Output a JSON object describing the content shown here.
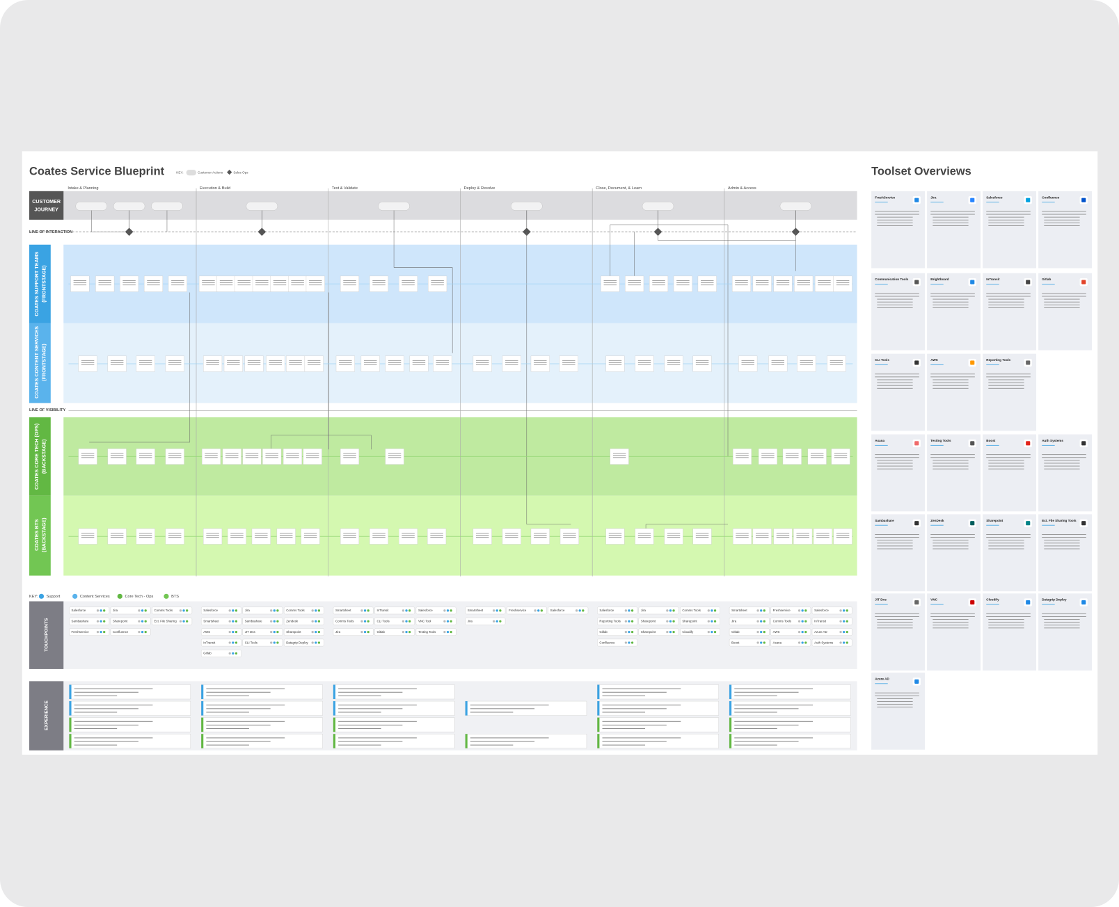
{
  "header": {
    "title": "Coates Service Blueprint",
    "key_label": "KEY:",
    "key_items": [
      "Customer Actions",
      "Sales Ops"
    ]
  },
  "phases": [
    "Intake & Planning",
    "Execution & Build",
    "Test & Validate",
    "Deploy & Resolve",
    "Close, Document, & Learn",
    "Admin & Access"
  ],
  "journey_label": [
    "CUSTOMER",
    "JOURNEY"
  ],
  "lines": {
    "interaction": "LINE OF INTERACTION",
    "visibility": "LINE OF VISIBILITY"
  },
  "lanes": [
    {
      "label": "COATES SUPPORT TEAMS",
      "sub": "(FRONTSTAGE)"
    },
    {
      "label": "COATES CONTENT SERVICES",
      "sub": "(FRONTSTAGE)"
    },
    {
      "label": "COATES CORE TECH (OPS)",
      "sub": "(BACKSTAGE)"
    },
    {
      "label": "COATES BTS",
      "sub": "(BACKSTAGE)"
    }
  ],
  "lane_key": {
    "label": "KEY:",
    "items": [
      "Support",
      "Content Services",
      "Core Tech - Ops",
      "BTS"
    ]
  },
  "touchpoints": {
    "label": "TOUCHPOINTS",
    "groups": [
      [
        "Salesforce",
        "Jira",
        "Comms Tools",
        "Sambashare",
        "Sharepoint",
        "Ext. File Sharing",
        "Freshservice",
        "Confluence"
      ],
      [
        "Salesforce",
        "Jira",
        "Comms Tools",
        "Smartsheet",
        "Sambashare",
        "Zendesk",
        "AWS",
        "JIT Dns",
        "Sharepoint",
        "InTransit",
        "CLI Tools",
        "Datagrip Deploy",
        "Gitlab"
      ],
      [
        "Smartsheet",
        "InTransit",
        "Salesforce",
        "Comms Tools",
        "CLI Tools",
        "VNC Tool",
        "Jira",
        "Gitlab",
        "Testing Tools"
      ],
      [
        "Smartsheet",
        "Freshservice",
        "Salesforce",
        "Jira"
      ],
      [
        "Salesforce",
        "Jira",
        "Comms Tools",
        "Reporting Tools",
        "Sharepoint",
        "Sharepoint",
        "Gitlab",
        "Sharepoint",
        "Cloudify",
        "Confluence"
      ],
      [
        "Smartsheet",
        "Freshservice",
        "Salesforce",
        "Jira",
        "Comms Tools",
        "InTransit",
        "Gitlab",
        "AWS",
        "Azure AD",
        "Boost",
        "Asana",
        "Auth Systems"
      ]
    ]
  },
  "experience": {
    "label": "EXPERIENCE"
  },
  "toolset": {
    "title": "Toolset Overviews",
    "cards": [
      "FreshService",
      "Jira",
      "Salesforce",
      "Confluence",
      "Communication Tools",
      "Brightboard",
      "InTransit",
      "Gitlab",
      "CLI Tools",
      "AWS",
      "Reporting Tools",
      "Asana",
      "Testing Tools",
      "Boost",
      "Auth Systems",
      "Sambashare",
      "ZenDesk",
      "Sharepoint",
      "Ext. File Sharing Tools",
      "JIT Dns",
      "VNC",
      "Cloudify",
      "Datagrip Deploy",
      "Azure AD"
    ]
  }
}
